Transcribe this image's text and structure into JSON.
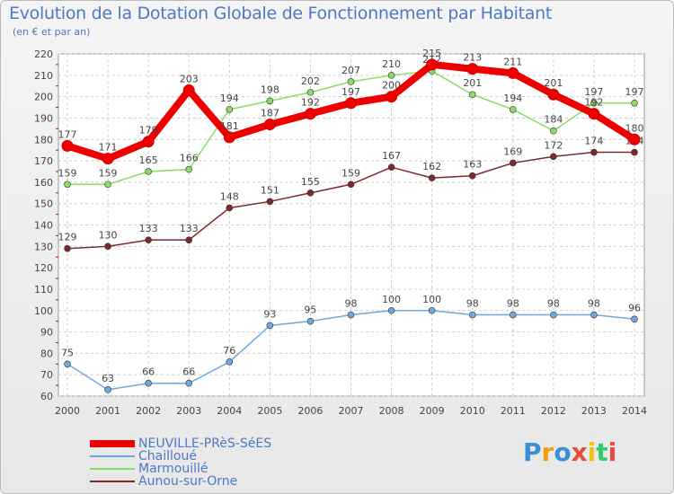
{
  "chart_data": {
    "type": "line",
    "title": "Evolution de la Dotation Globale de Fonctionnement par Habitant",
    "subtitle": "(en € et par an)",
    "categories": [
      "2000",
      "2001",
      "2002",
      "2003",
      "2004",
      "2005",
      "2006",
      "2007",
      "2008",
      "2009",
      "2010",
      "2011",
      "2012",
      "2013",
      "2014"
    ],
    "ylim": [
      60,
      220
    ],
    "yticks": [
      60,
      70,
      80,
      90,
      100,
      110,
      120,
      130,
      140,
      150,
      160,
      170,
      180,
      190,
      200,
      210,
      220
    ],
    "grid": true,
    "legend_position": "bottom-left",
    "series": [
      {
        "name": "NEUVILLE-PRèS-SéES",
        "color": "#ee0000",
        "values": [
          177,
          171,
          179,
          203,
          181,
          187,
          192,
          197,
          200,
          215,
          213,
          211,
          201,
          192,
          180
        ]
      },
      {
        "name": "Chailloué",
        "color": "#6fa8dc",
        "values": [
          75,
          63,
          66,
          66,
          76,
          93,
          95,
          98,
          100,
          100,
          98,
          98,
          98,
          98,
          96
        ]
      },
      {
        "name": "Marmouillé",
        "color": "#88dd66",
        "values": [
          159,
          159,
          165,
          166,
          194,
          198,
          202,
          207,
          210,
          212,
          201,
          194,
          184,
          197,
          197
        ]
      },
      {
        "name": "Aunou-sur-Orne",
        "color": "#7a2a2a",
        "values": [
          129,
          130,
          133,
          133,
          148,
          151,
          155,
          159,
          167,
          162,
          163,
          169,
          172,
          174,
          174
        ]
      }
    ]
  },
  "brand": {
    "letters": [
      "P",
      "r",
      "o",
      "x",
      "i",
      "t",
      "i"
    ],
    "colors": [
      "#3a8fd8",
      "#f39c12",
      "#3a8fd8",
      "#e74c3c",
      "#f1c40f",
      "#2ecc71",
      "#e74c3c"
    ]
  }
}
